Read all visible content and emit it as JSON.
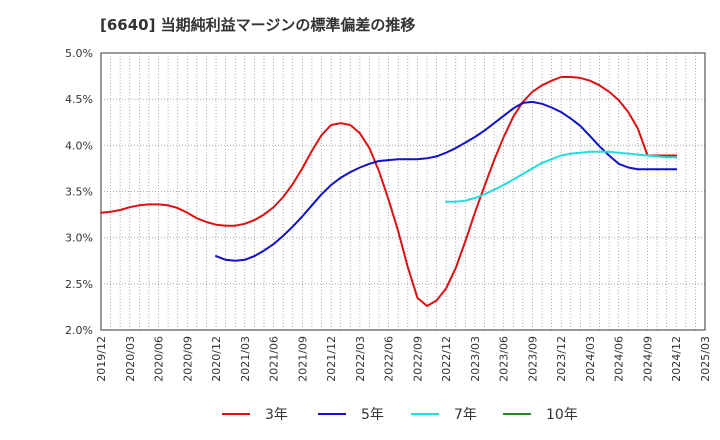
{
  "chart_data": {
    "type": "line",
    "title": "[6640]  当期純利益マージンの標準偏差の推移",
    "xlabel": "",
    "ylabel": "",
    "ylim": [
      2.0,
      5.0
    ],
    "y_ticks": [
      "2.0%",
      "2.5%",
      "3.0%",
      "3.5%",
      "4.0%",
      "4.5%",
      "5.0%"
    ],
    "x_ticks": [
      "2019/12",
      "2020/03",
      "2020/06",
      "2020/09",
      "2020/12",
      "2021/03",
      "2021/06",
      "2021/09",
      "2021/12",
      "2022/03",
      "2022/06",
      "2022/09",
      "2022/12",
      "2023/03",
      "2023/06",
      "2023/09",
      "2023/12",
      "2024/03",
      "2024/06",
      "2024/09",
      "2024/12",
      "2025/03"
    ],
    "grid": true,
    "legend_position": "bottom",
    "series": [
      {
        "name": "3年",
        "color": "#dd1111",
        "x": [
          "2019/12",
          "2020/01",
          "2020/02",
          "2020/03",
          "2020/04",
          "2020/05",
          "2020/06",
          "2020/07",
          "2020/08",
          "2020/09",
          "2020/10",
          "2020/11",
          "2020/12",
          "2021/01",
          "2021/02",
          "2021/03",
          "2021/04",
          "2021/05",
          "2021/06",
          "2021/07",
          "2021/08",
          "2021/09",
          "2021/10",
          "2021/11",
          "2021/12",
          "2022/01",
          "2022/02",
          "2022/03",
          "2022/04",
          "2022/05",
          "2022/06",
          "2022/07",
          "2022/08",
          "2022/09",
          "2022/10",
          "2022/11",
          "2022/12",
          "2023/01",
          "2023/02",
          "2023/03",
          "2023/04",
          "2023/05",
          "2023/06",
          "2023/07",
          "2023/08",
          "2023/09",
          "2023/10",
          "2023/11",
          "2023/12",
          "2024/01",
          "2024/02",
          "2024/03",
          "2024/04",
          "2024/05",
          "2024/06",
          "2024/07",
          "2024/08",
          "2024/09",
          "2024/10",
          "2024/11",
          "2024/12"
        ],
        "values": [
          3.27,
          3.28,
          3.3,
          3.33,
          3.35,
          3.36,
          3.36,
          3.35,
          3.32,
          3.27,
          3.21,
          3.17,
          3.14,
          3.13,
          3.13,
          3.15,
          3.19,
          3.25,
          3.33,
          3.44,
          3.58,
          3.75,
          3.94,
          4.11,
          4.22,
          4.24,
          4.22,
          4.13,
          3.97,
          3.72,
          3.41,
          3.07,
          2.68,
          2.35,
          2.26,
          2.32,
          2.45,
          2.67,
          2.96,
          3.27,
          3.56,
          3.84,
          4.09,
          4.31,
          4.47,
          4.58,
          4.65,
          4.7,
          4.74,
          4.74,
          4.73,
          4.7,
          4.65,
          4.58,
          4.49,
          4.36,
          4.18,
          3.89,
          3.89,
          3.89,
          3.89
        ]
      },
      {
        "name": "5年",
        "color": "#1111cc",
        "x": [
          "2020/12",
          "2021/01",
          "2021/02",
          "2021/03",
          "2021/04",
          "2021/05",
          "2021/06",
          "2021/07",
          "2021/08",
          "2021/09",
          "2021/10",
          "2021/11",
          "2021/12",
          "2022/01",
          "2022/02",
          "2022/03",
          "2022/04",
          "2022/05",
          "2022/06",
          "2022/07",
          "2022/08",
          "2022/09",
          "2022/10",
          "2022/11",
          "2022/12",
          "2023/01",
          "2023/02",
          "2023/03",
          "2023/04",
          "2023/05",
          "2023/06",
          "2023/07",
          "2023/08",
          "2023/09",
          "2023/10",
          "2023/11",
          "2023/12",
          "2024/01",
          "2024/02",
          "2024/03",
          "2024/04",
          "2024/05",
          "2024/06",
          "2024/07",
          "2024/08",
          "2024/09",
          "2024/10",
          "2024/11",
          "2024/12"
        ],
        "values": [
          2.8,
          2.76,
          2.75,
          2.76,
          2.8,
          2.86,
          2.93,
          3.02,
          3.12,
          3.23,
          3.35,
          3.47,
          3.57,
          3.65,
          3.71,
          3.76,
          3.8,
          3.83,
          3.84,
          3.85,
          3.85,
          3.85,
          3.86,
          3.88,
          3.92,
          3.97,
          4.03,
          4.09,
          4.16,
          4.24,
          4.32,
          4.4,
          4.46,
          4.47,
          4.45,
          4.41,
          4.36,
          4.29,
          4.21,
          4.1,
          3.99,
          3.89,
          3.8,
          3.76,
          3.74,
          3.74,
          3.74,
          3.74,
          3.74
        ]
      },
      {
        "name": "7年",
        "color": "#22dddd",
        "x": [
          "2022/12",
          "2023/01",
          "2023/02",
          "2023/03",
          "2023/04",
          "2023/05",
          "2023/06",
          "2023/07",
          "2023/08",
          "2023/09",
          "2023/10",
          "2023/11",
          "2023/12",
          "2024/01",
          "2024/02",
          "2024/03",
          "2024/04",
          "2024/05",
          "2024/06",
          "2024/07",
          "2024/08",
          "2024/09",
          "2024/10",
          "2024/11",
          "2024/12"
        ],
        "values": [
          3.39,
          3.39,
          3.4,
          3.43,
          3.47,
          3.52,
          3.57,
          3.63,
          3.69,
          3.75,
          3.81,
          3.85,
          3.89,
          3.91,
          3.92,
          3.93,
          3.93,
          3.93,
          3.92,
          3.91,
          3.9,
          3.89,
          3.88,
          3.87,
          3.87
        ]
      },
      {
        "name": "10年",
        "color": "#228822",
        "x": [],
        "values": []
      }
    ]
  }
}
